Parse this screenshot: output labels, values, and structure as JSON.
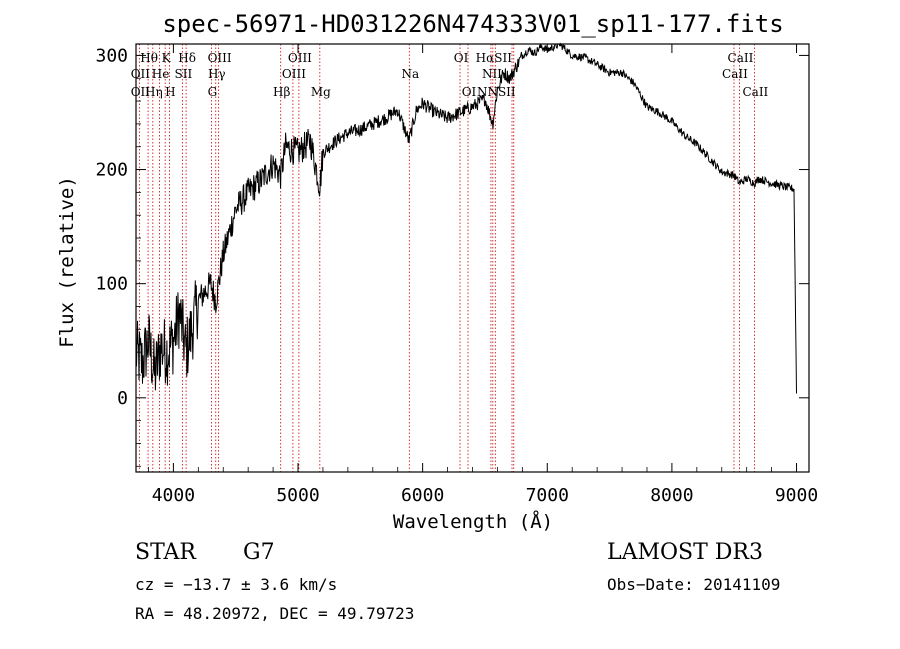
{
  "chart_data": {
    "type": "line",
    "title": "spec-56971-HD031226N474333V01_sp11-177.fits",
    "xlabel": "Wavelength (Å)",
    "ylabel": "Flux (relative)",
    "xlim": [
      3700,
      9100
    ],
    "ylim": [
      -65,
      310
    ],
    "xticks": [
      4000,
      5000,
      6000,
      7000,
      8000,
      9000
    ],
    "yticks": [
      0,
      100,
      200,
      300
    ],
    "grid": false,
    "series": [
      {
        "name": "flux",
        "color": "#000000",
        "x": [
          3700,
          3750,
          3800,
          3850,
          3900,
          3950,
          4000,
          4050,
          4100,
          4150,
          4200,
          4300,
          4340,
          4400,
          4500,
          4600,
          4700,
          4800,
          4861,
          4900,
          5000,
          5100,
          5175,
          5200,
          5300,
          5400,
          5500,
          5600,
          5700,
          5800,
          5890,
          5950,
          6000,
          6100,
          6200,
          6300,
          6400,
          6500,
          6563,
          6600,
          6650,
          6700,
          6750,
          6800,
          6850,
          6900,
          6950,
          7000,
          7100,
          7200,
          7300,
          7400,
          7500,
          7600,
          7700,
          7800,
          7900,
          8000,
          8100,
          8200,
          8300,
          8400,
          8498,
          8542,
          8600,
          8662,
          8700,
          8800,
          8900,
          8980,
          9000
        ],
        "y": [
          40,
          30,
          50,
          20,
          45,
          40,
          50,
          75,
          40,
          60,
          85,
          100,
          85,
          125,
          165,
          180,
          190,
          205,
          195,
          220,
          215,
          225,
          185,
          215,
          225,
          232,
          235,
          240,
          245,
          252,
          225,
          252,
          258,
          250,
          245,
          250,
          255,
          262,
          240,
          270,
          285,
          280,
          290,
          300,
          305,
          302,
          308,
          305,
          310,
          300,
          298,
          292,
          285,
          285,
          275,
          255,
          250,
          242,
          230,
          222,
          210,
          198,
          195,
          188,
          192,
          188,
          192,
          188,
          185,
          183,
          5
        ]
      }
    ],
    "lines": [
      {
        "name": "OII",
        "x": 3727
      },
      {
        "name": "Hθ",
        "x": 3797
      },
      {
        "name": "Hη",
        "x": 3835
      },
      {
        "name": "HeI",
        "x": 3889
      },
      {
        "name": "K",
        "x": 3934
      },
      {
        "name": "H",
        "x": 3968
      },
      {
        "name": "Hδ",
        "x": 4102
      },
      {
        "name": "SII",
        "x": 4072
      },
      {
        "name": "OIII",
        "x": 4363
      },
      {
        "name": "Hγ",
        "x": 4340
      },
      {
        "name": "G",
        "x": 4305
      },
      {
        "name": "Hβ",
        "x": 4861
      },
      {
        "name": "OIII",
        "x": 4959
      },
      {
        "name": "OIII",
        "x": 5007
      },
      {
        "name": "Mg",
        "x": 5175
      },
      {
        "name": "Na",
        "x": 5893
      },
      {
        "name": "OI",
        "x": 6300
      },
      {
        "name": "OI",
        "x": 6364
      },
      {
        "name": "NII",
        "x": 6548
      },
      {
        "name": "Hα",
        "x": 6563
      },
      {
        "name": "NII",
        "x": 6583
      },
      {
        "name": "SII",
        "x": 6717
      },
      {
        "name": "SII",
        "x": 6731
      },
      {
        "name": "CaII",
        "x": 8498
      },
      {
        "name": "CaII",
        "x": 8542
      },
      {
        "name": "CaII",
        "x": 8662
      }
    ],
    "line_labels": [
      {
        "text": "Hθ",
        "row": 1,
        "x": 3797
      },
      {
        "text": "OII",
        "row": 2,
        "x": 3727
      },
      {
        "text": "OII",
        "row": 3,
        "x": 3727
      },
      {
        "text": "K",
        "row": 1,
        "x": 3934
      },
      {
        "text": "He",
        "row": 2,
        "x": 3889
      },
      {
        "text": "Hη",
        "row": 3,
        "x": 3835
      },
      {
        "text": "Hδ",
        "row": 1,
        "x": 4102
      },
      {
        "text": "SII",
        "row": 2,
        "x": 4072
      },
      {
        "text": "H",
        "row": 3,
        "x": 3968
      },
      {
        "text": "OIII",
        "row": 1,
        "x": 4363
      },
      {
        "text": "Hγ",
        "row": 2,
        "x": 4340
      },
      {
        "text": "G",
        "row": 3,
        "x": 4305
      },
      {
        "text": "OIII",
        "row": 1,
        "x": 5007
      },
      {
        "text": "OIII",
        "row": 2,
        "x": 4959
      },
      {
        "text": "Hβ",
        "row": 3,
        "x": 4861
      },
      {
        "text": "Mg",
        "row": 3,
        "x": 5175
      },
      {
        "text": "Na",
        "row": 2,
        "x": 5893
      },
      {
        "text": "OI",
        "row": 1,
        "x": 6300
      },
      {
        "text": "OI",
        "row": 3,
        "x": 6364
      },
      {
        "text": "HαSII",
        "row": 1,
        "x": 6563
      },
      {
        "text": "NII",
        "row": 2,
        "x": 6548
      },
      {
        "text": "NNSII",
        "row": 3,
        "x": 6583
      },
      {
        "text": "CaII",
        "row": 1,
        "x": 8542
      },
      {
        "text": "CaII",
        "row": 2,
        "x": 8498
      },
      {
        "text": "CaII",
        "row": 3,
        "x": 8662
      }
    ]
  },
  "info": {
    "object_class": "STAR",
    "subclass": "G7",
    "survey": "LAMOST DR3",
    "cz": "cz = −13.7 ± 3.6 km/s",
    "obs_date": "Obs−Date: 20141109",
    "coords": "RA =  48.20972, DEC =  49.79723"
  },
  "colors": {
    "spectrum": "#000000",
    "line_marker": "#cc0000",
    "axes": "#000000"
  }
}
